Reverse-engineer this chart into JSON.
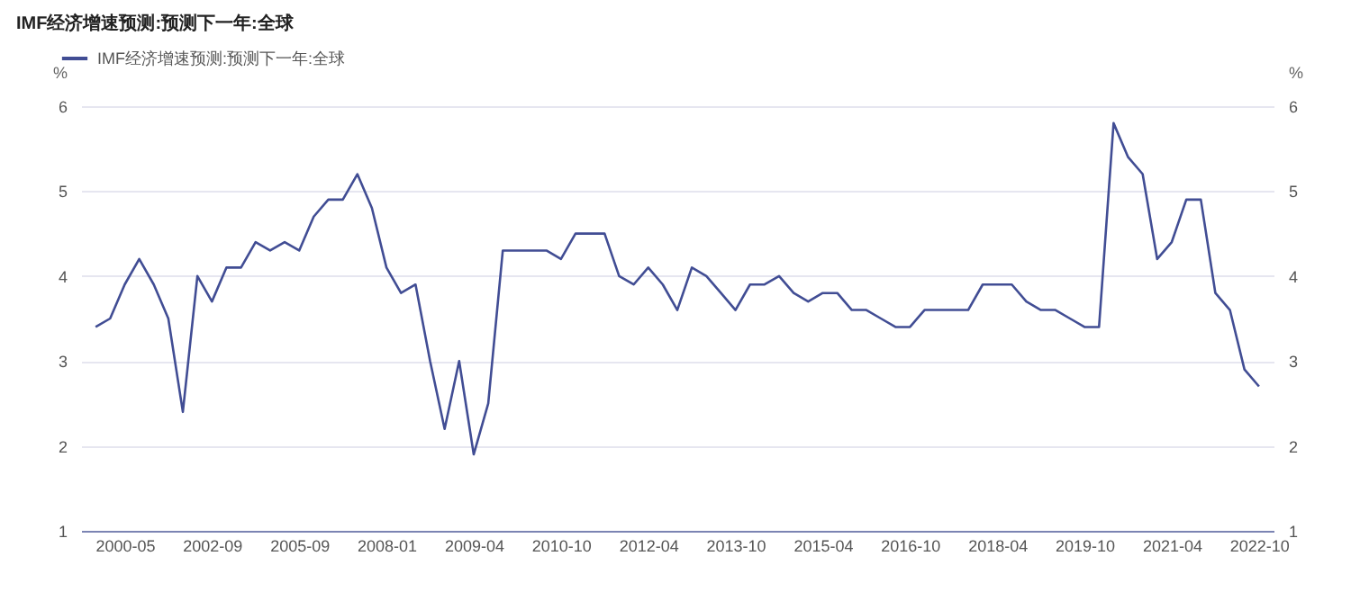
{
  "chart_data": {
    "type": "line",
    "title": "IMF经济增速预测:预测下一年:全球",
    "ylabel": "%",
    "y2label": "%",
    "categories": [
      null,
      null,
      "2000-05",
      null,
      null,
      null,
      null,
      null,
      "2002-09",
      null,
      null,
      null,
      null,
      null,
      "2005-09",
      null,
      null,
      null,
      null,
      null,
      "2008-01",
      null,
      null,
      null,
      null,
      null,
      "2009-04",
      null,
      null,
      null,
      null,
      null,
      "2010-10",
      null,
      null,
      null,
      null,
      null,
      "2012-04",
      null,
      null,
      null,
      null,
      null,
      "2013-10",
      null,
      null,
      null,
      null,
      null,
      "2015-04",
      null,
      null,
      null,
      null,
      null,
      "2016-10",
      null,
      null,
      null,
      null,
      null,
      "2018-04",
      null,
      null,
      null,
      null,
      null,
      "2019-10",
      null,
      null,
      null,
      null,
      null,
      "2021-04",
      null,
      null,
      null,
      null,
      null,
      "2022-10"
    ],
    "series": [
      {
        "name": "IMF经济增速预测:预测下一年:全球",
        "color": "#414d94",
        "values": [
          3.4,
          3.5,
          3.9,
          4.2,
          3.9,
          3.5,
          2.4,
          4.0,
          3.7,
          4.1,
          4.1,
          4.4,
          4.3,
          4.4,
          4.3,
          4.7,
          4.9,
          4.9,
          5.2,
          4.8,
          4.1,
          3.8,
          3.9,
          3.0,
          2.2,
          3.0,
          1.9,
          2.5,
          4.3,
          4.3,
          4.3,
          4.3,
          4.2,
          4.5,
          4.5,
          4.5,
          4.0,
          3.9,
          4.1,
          3.9,
          3.6,
          4.1,
          4.0,
          3.8,
          3.6,
          3.9,
          3.9,
          4.0,
          3.8,
          3.7,
          3.8,
          3.8,
          3.6,
          3.6,
          3.5,
          3.4,
          3.4,
          3.6,
          3.6,
          3.6,
          3.6,
          3.9,
          3.9,
          3.9,
          3.7,
          3.6,
          3.6,
          3.5,
          3.4,
          3.4,
          5.8,
          5.4,
          5.2,
          4.2,
          4.4,
          4.9,
          4.9,
          3.8,
          3.6,
          2.9,
          2.7
        ]
      }
    ],
    "ylim": [
      1,
      6
    ],
    "yticks": [
      1,
      2,
      3,
      4,
      5,
      6
    ],
    "y2lim": [
      1,
      6
    ],
    "y2ticks": [
      1,
      2,
      3,
      4,
      5,
      6
    ],
    "grid": "y",
    "legend": "top left",
    "marker": "none"
  }
}
